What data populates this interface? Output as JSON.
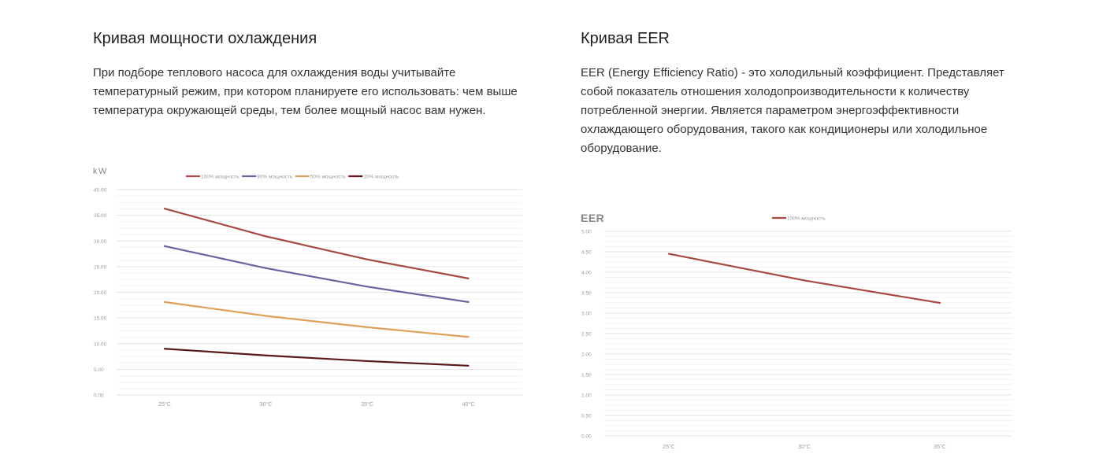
{
  "left": {
    "title": "Кривая мощности охлаждения",
    "description": "При подборе теплового насоса для охлаждения воды учитывайте температурный режим, при котором планируете его использовать: чем выше температура окружающей среды, тем более мощный насос вам нужен."
  },
  "right": {
    "title": "Кривая EER",
    "description": "EER (Energy Efficiency Ratio) - это холодильный коэффициент. Представляет собой показатель отношения холодопроизводительности к количеству потребленной энергии. Является параметром энергоэффективности охлаждающего оборудования, такого как кондиционеры или холодильное оборудование."
  },
  "chart_data": [
    {
      "type": "line",
      "ylabel": "kW",
      "categories": [
        "25°C",
        "30°C",
        "35°C",
        "40°C"
      ],
      "yticks": [
        "0.00",
        "5.00",
        "10.00",
        "15.00",
        "20.00",
        "25.00",
        "30.00",
        "35.00",
        "40.00"
      ],
      "ylim": [
        0,
        40
      ],
      "grid": true,
      "legend_position": "top",
      "series": [
        {
          "name": "100% мощность",
          "color": "#a84a44",
          "values": [
            36.3,
            30.9,
            26.4,
            22.7
          ]
        },
        {
          "name": "80% мощность",
          "color": "#6b62a0",
          "values": [
            29.0,
            24.7,
            21.1,
            18.1
          ]
        },
        {
          "name": "50% мощность",
          "color": "#dca25a",
          "values": [
            18.1,
            15.4,
            13.2,
            11.3
          ]
        },
        {
          "name": "20% мощность",
          "color": "#5a1818",
          "values": [
            9.0,
            7.7,
            6.6,
            5.7
          ]
        }
      ]
    },
    {
      "type": "line",
      "ylabel": "EER",
      "categories": [
        "25°C",
        "30°C",
        "35°C"
      ],
      "yticks": [
        "0.00",
        "0.50",
        "1.00",
        "1.50",
        "2.00",
        "2.50",
        "3.00",
        "3.50",
        "4.00",
        "4.50",
        "5.00"
      ],
      "ylim": [
        0,
        5
      ],
      "grid": true,
      "legend_position": "top",
      "series": [
        {
          "name": "100% мощность",
          "color": "#a84a44",
          "values": [
            4.45,
            3.8,
            3.25
          ]
        }
      ]
    }
  ]
}
